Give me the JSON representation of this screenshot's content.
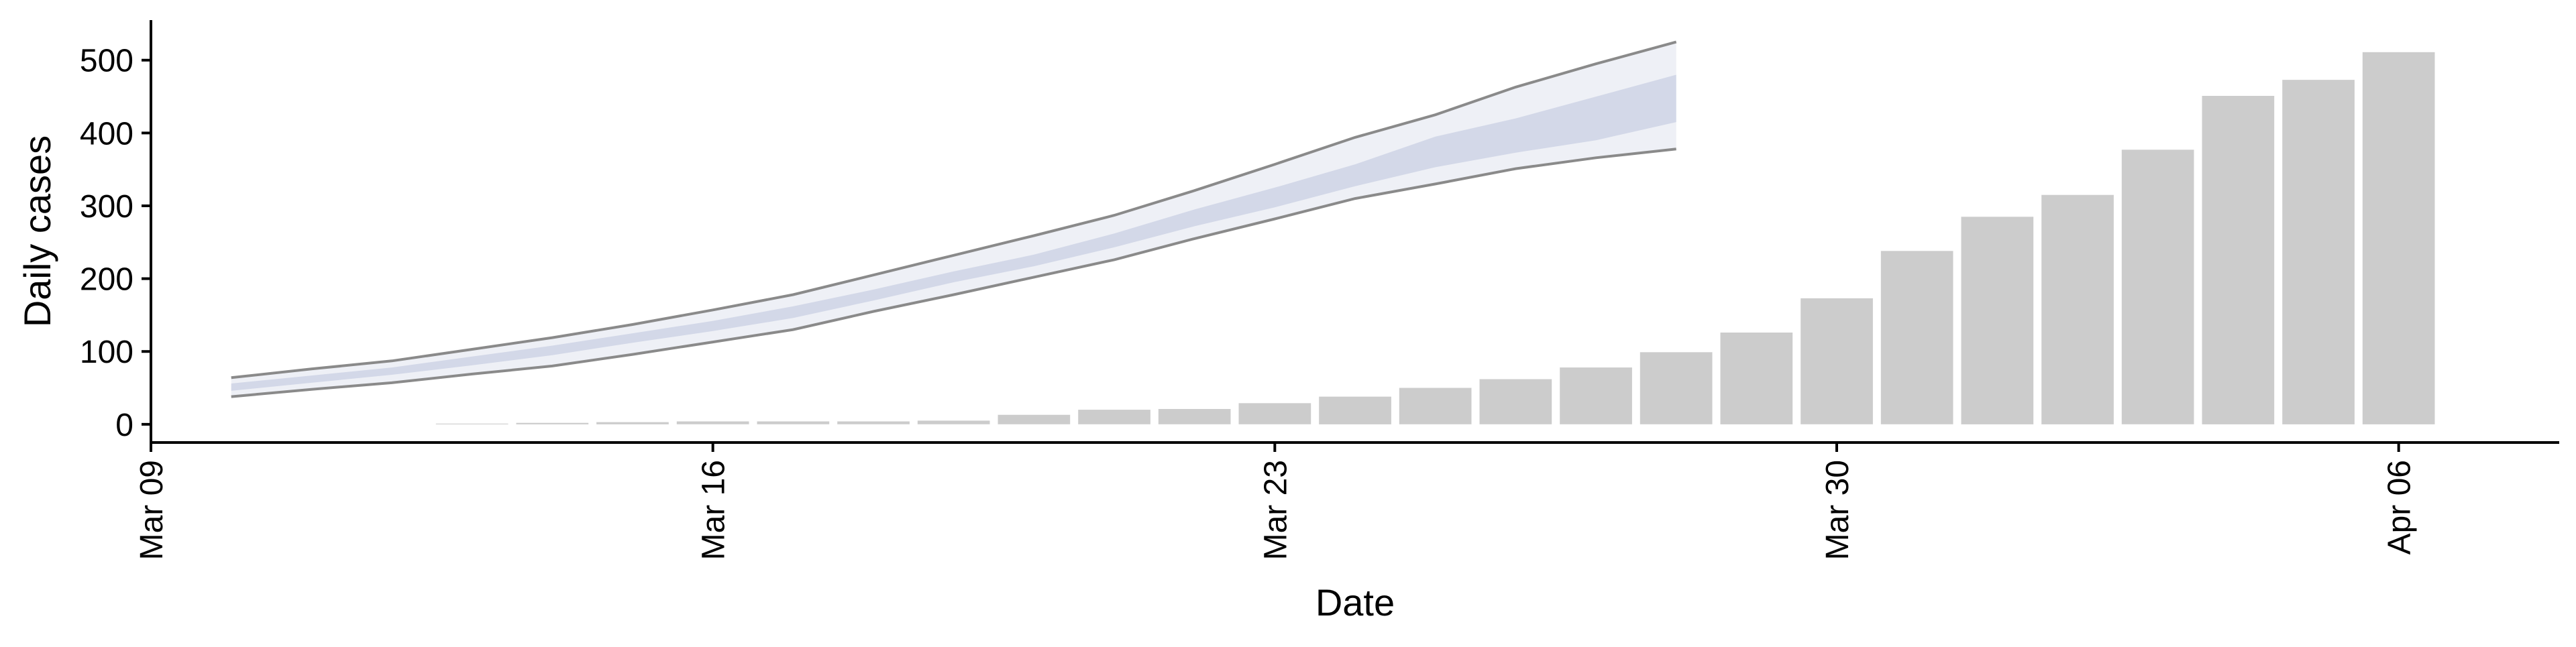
{
  "chart_data": {
    "type": "bar",
    "xlabel": "Date",
    "ylabel": "Daily cases",
    "x_ticks": [
      {
        "date": "2020-03-09",
        "label": "Mar 09"
      },
      {
        "date": "2020-03-16",
        "label": "Mar 16"
      },
      {
        "date": "2020-03-23",
        "label": "Mar 23"
      },
      {
        "date": "2020-03-30",
        "label": "Mar 30"
      },
      {
        "date": "2020-04-06",
        "label": "Apr 06"
      }
    ],
    "y_ticks": [
      0,
      100,
      200,
      300,
      400,
      500
    ],
    "xlim": [
      "2020-03-09",
      "2020-04-08"
    ],
    "ylim": [
      -25,
      555
    ],
    "grid": false,
    "bars": {
      "x": [
        "2020-03-13",
        "2020-03-14",
        "2020-03-15",
        "2020-03-16",
        "2020-03-17",
        "2020-03-18",
        "2020-03-19",
        "2020-03-20",
        "2020-03-21",
        "2020-03-22",
        "2020-03-23",
        "2020-03-24",
        "2020-03-25",
        "2020-03-26",
        "2020-03-27",
        "2020-03-28",
        "2020-03-29",
        "2020-03-30",
        "2020-03-31",
        "2020-04-01",
        "2020-04-02",
        "2020-04-03",
        "2020-04-04",
        "2020-04-05",
        "2020-04-06"
      ],
      "values": [
        1,
        2,
        3,
        4,
        4,
        4,
        5,
        13,
        20,
        21,
        29,
        38,
        50,
        62,
        78,
        99,
        126,
        173,
        238,
        285,
        315,
        377,
        451,
        473,
        511
      ],
      "color": "#cccccc"
    },
    "forecast": {
      "x": [
        "2020-03-10",
        "2020-03-11",
        "2020-03-12",
        "2020-03-13",
        "2020-03-14",
        "2020-03-15",
        "2020-03-16",
        "2020-03-17",
        "2020-03-18",
        "2020-03-19",
        "2020-03-20",
        "2020-03-21",
        "2020-03-22",
        "2020-03-23",
        "2020-03-24",
        "2020-03-25",
        "2020-03-26",
        "2020-03-27",
        "2020-03-28"
      ],
      "lower_90": [
        38,
        48,
        57,
        69,
        80,
        96,
        113,
        130,
        155,
        178,
        202,
        226,
        255,
        282,
        310,
        330,
        351,
        366,
        378
      ],
      "upper_90": [
        64,
        76,
        87,
        103,
        119,
        137,
        157,
        178,
        205,
        232,
        259,
        287,
        321,
        357,
        394,
        425,
        463,
        495,
        525
      ],
      "lower_50": [
        46,
        57,
        68,
        81,
        95,
        112,
        128,
        146,
        170,
        195,
        217,
        243,
        272,
        298,
        327,
        353,
        373,
        390,
        415
      ],
      "upper_50": [
        56,
        67,
        78,
        93,
        108,
        125,
        142,
        162,
        185,
        210,
        233,
        262,
        295,
        325,
        357,
        395,
        420,
        450,
        480
      ],
      "band_color": "#d3d8e8",
      "outer_band_color": "#eef0f6",
      "line_color": "#8a8a8a"
    }
  }
}
